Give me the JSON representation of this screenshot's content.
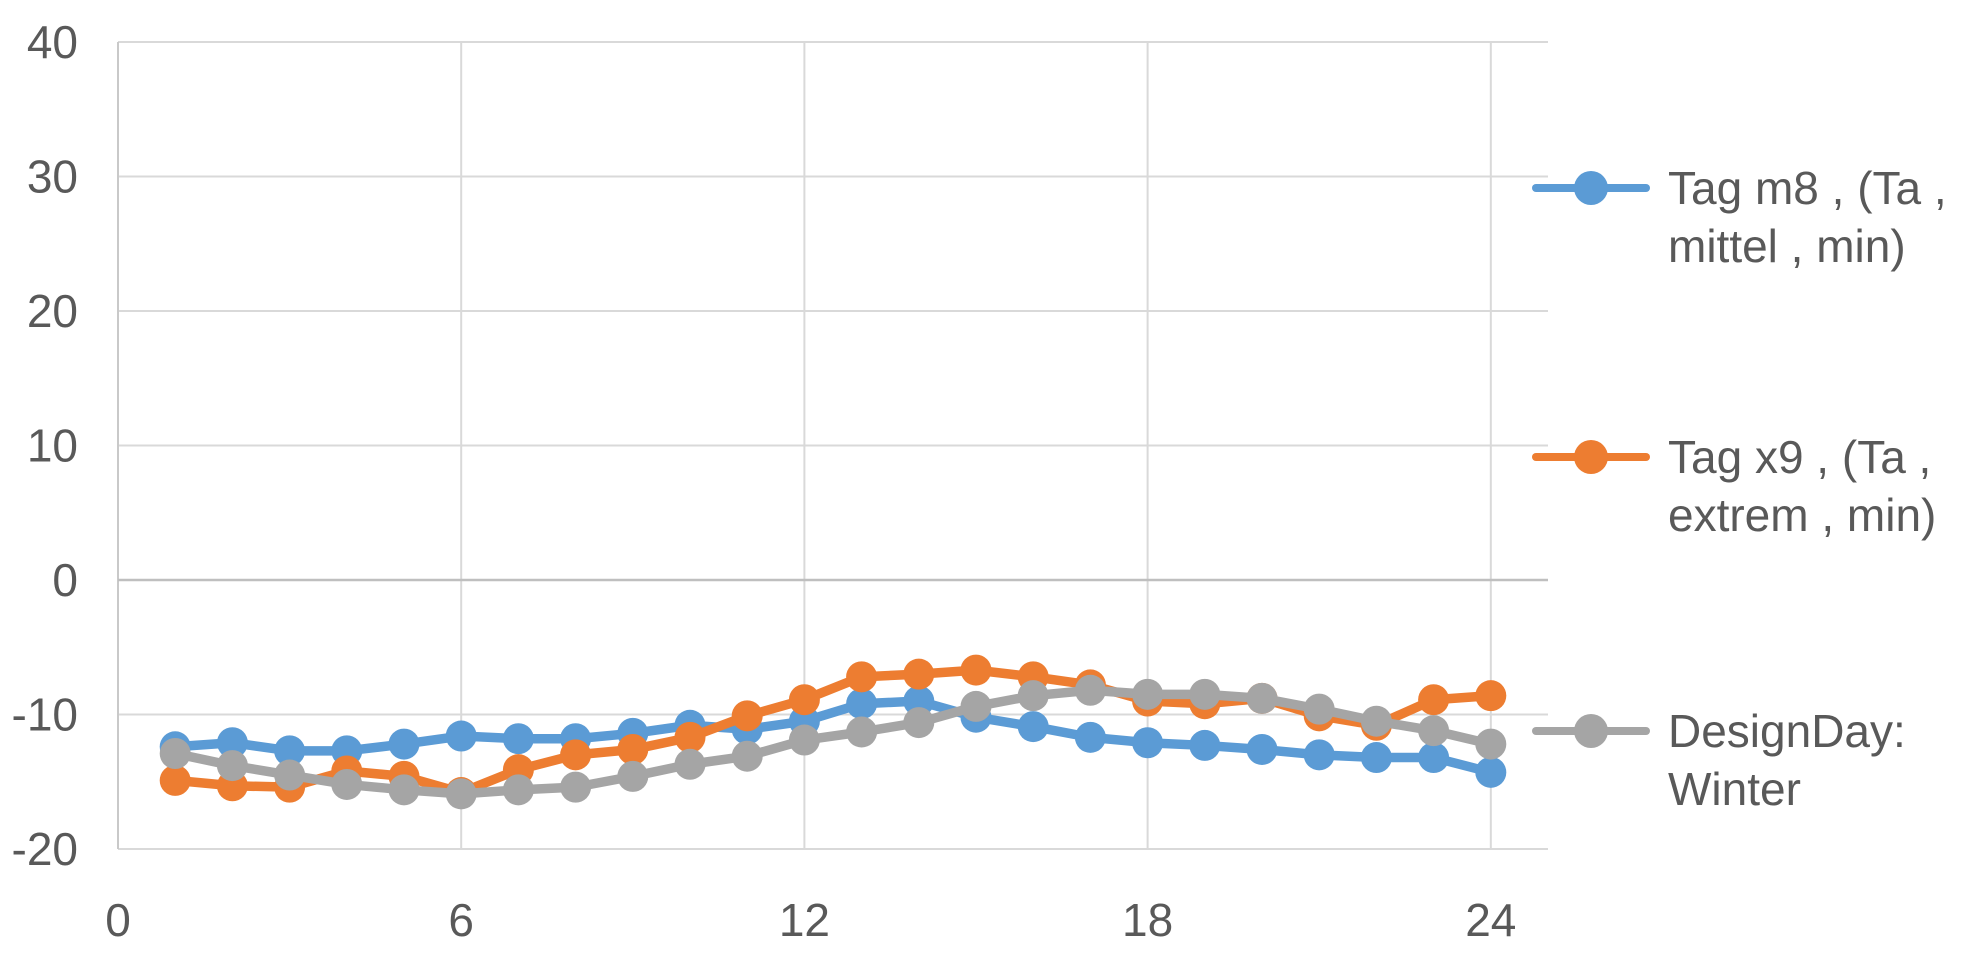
{
  "chart_data": {
    "type": "line",
    "title": "",
    "xlabel": "",
    "ylabel": "",
    "x": [
      1,
      2,
      3,
      4,
      5,
      6,
      7,
      8,
      9,
      10,
      11,
      12,
      13,
      14,
      15,
      16,
      17,
      18,
      19,
      20,
      21,
      22,
      23,
      24
    ],
    "series": [
      {
        "name": "Tag m8 , (Ta , mittel , min)",
        "color": "#5B9BD5",
        "values": [
          -12.4,
          -12.1,
          -12.7,
          -12.7,
          -12.2,
          -11.6,
          -11.8,
          -11.8,
          -11.4,
          -10.8,
          -11.1,
          -10.5,
          -9.2,
          -9.0,
          -10.2,
          -10.9,
          -11.7,
          -12.1,
          -12.3,
          -12.6,
          -13.0,
          -13.2,
          -13.2,
          -14.3
        ]
      },
      {
        "name": "Tag x9 , (Ta , extrem , min)",
        "color": "#ED7D31",
        "values": [
          -14.9,
          -15.3,
          -15.4,
          -14.2,
          -14.6,
          -15.8,
          -14.1,
          -13.0,
          -12.6,
          -11.7,
          -10.1,
          -8.9,
          -7.2,
          -7.0,
          -6.7,
          -7.2,
          -7.8,
          -9.0,
          -9.2,
          -8.8,
          -10.1,
          -10.8,
          -8.9,
          -8.6
        ]
      },
      {
        "name": "DesignDay: Winter",
        "color": "#A5A5A5",
        "values": [
          -12.9,
          -13.8,
          -14.5,
          -15.2,
          -15.6,
          -15.9,
          -15.6,
          -15.4,
          -14.6,
          -13.7,
          -13.1,
          -11.9,
          -11.3,
          -10.6,
          -9.4,
          -8.6,
          -8.2,
          -8.5,
          -8.5,
          -8.8,
          -9.6,
          -10.5,
          -11.2,
          -12.2
        ]
      }
    ],
    "x_ticks": [
      0,
      6,
      12,
      18,
      24
    ],
    "y_ticks": [
      40,
      30,
      20,
      10,
      0,
      -10,
      -20
    ],
    "xlim": [
      0,
      25
    ],
    "ylim": [
      -20,
      40
    ],
    "grid": true,
    "legend_position": "right"
  },
  "style": {
    "grid_color": "#D9D9D9",
    "zero_line_color": "#BFBFBF",
    "axis_line_color": "#C9C9C9",
    "tick_label_color": "#595959",
    "background": "#FFFFFF",
    "marker_radius": 15.5,
    "line_width": 9.5
  }
}
